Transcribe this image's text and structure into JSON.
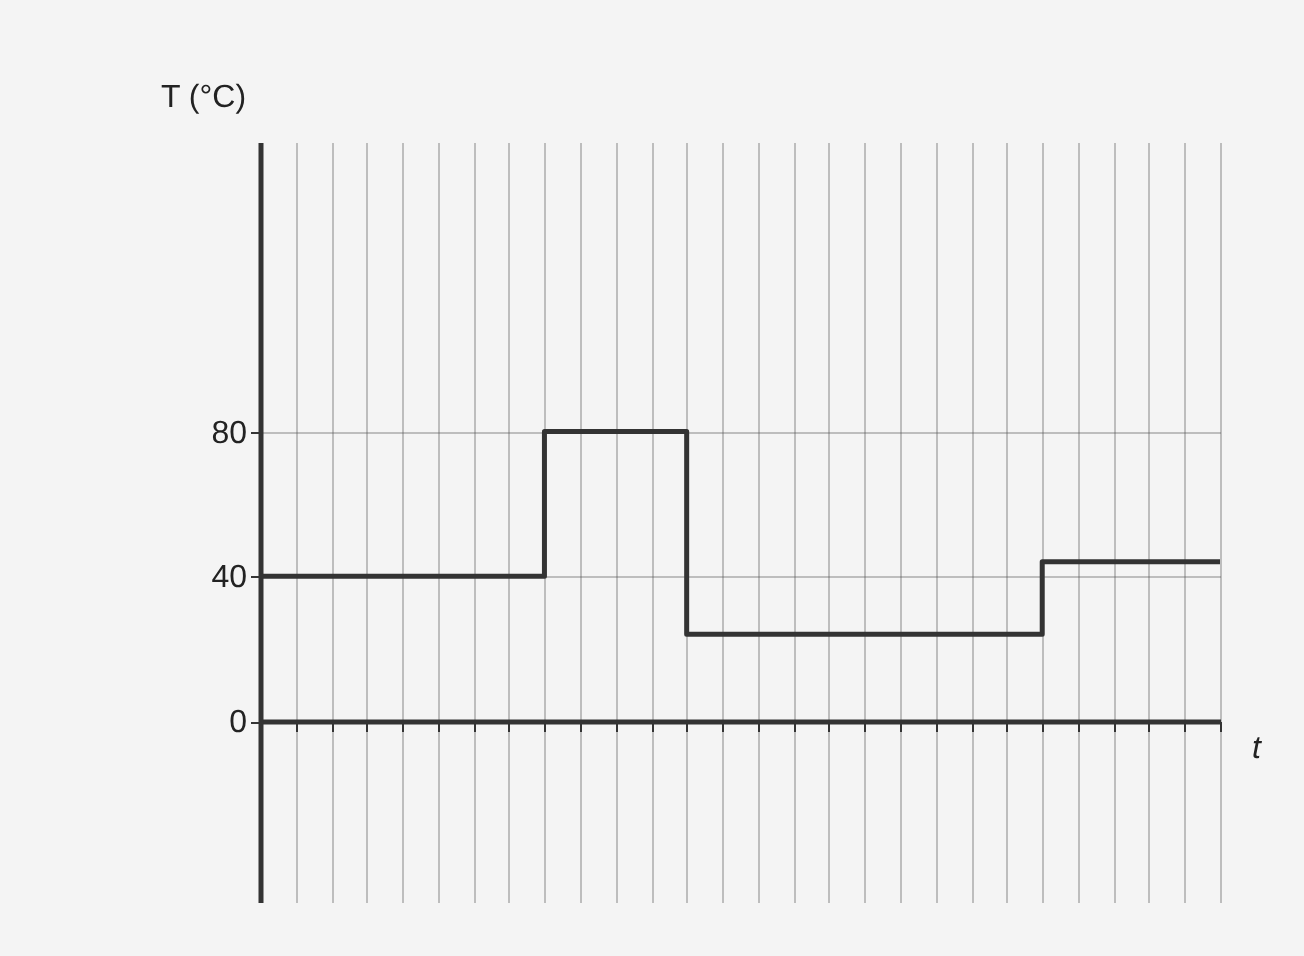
{
  "chart_data": {
    "type": "step",
    "xlabel": "t",
    "ylabel": "T (°C)",
    "categories": [
      null,
      null,
      null,
      null,
      null,
      null,
      null,
      null,
      null,
      null,
      null,
      null,
      null,
      null,
      null,
      null,
      null,
      null,
      null,
      null,
      null,
      null,
      null,
      null,
      null,
      null,
      null,
      null
    ],
    "values": [
      40,
      40,
      40,
      40,
      40,
      40,
      40,
      40,
      80,
      80,
      80,
      80,
      24,
      24,
      24,
      24,
      24,
      24,
      24,
      24,
      24,
      24,
      44,
      44,
      44,
      44,
      44,
      44
    ],
    "color": "#333333",
    "ylim": [
      -50,
      160
    ],
    "yticks": [
      0,
      40,
      80
    ],
    "grid": true,
    "tick_labels": "y"
  }
}
